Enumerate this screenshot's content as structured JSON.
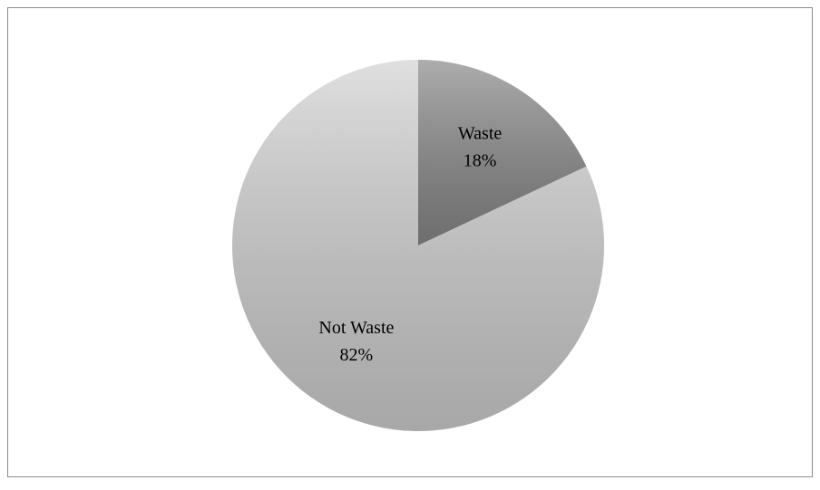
{
  "chart_data": {
    "type": "pie",
    "categories": [
      "Waste",
      "Not Waste"
    ],
    "values": [
      18,
      82
    ],
    "value_labels": [
      "18%",
      "82%"
    ],
    "colors": [
      "#8a8a8a",
      "#d2d2d2"
    ]
  }
}
